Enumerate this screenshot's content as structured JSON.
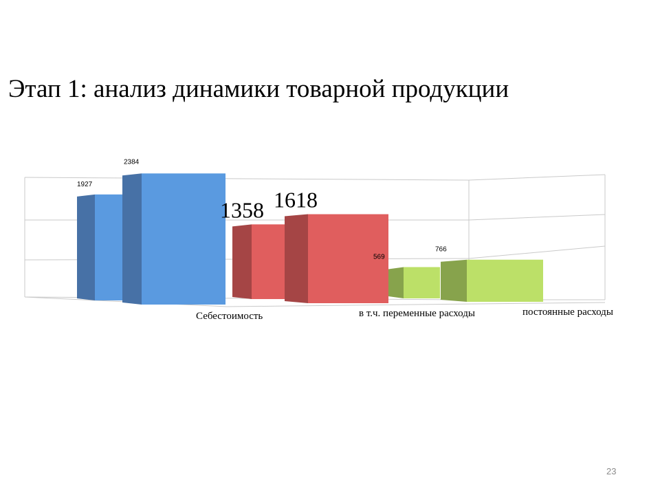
{
  "slide": {
    "title": "Этап 1: анализ динамики товарной продукции",
    "page_number": "23"
  },
  "chart_data": {
    "type": "bar",
    "view": "3d-perspective",
    "categories": [
      "Себестоимость",
      "в т.ч. переменные расходы",
      "постоянные расходы"
    ],
    "values": [
      [
        1927,
        2384
      ],
      [
        1358,
        1618
      ],
      [
        569,
        766
      ]
    ],
    "data_labels": [
      [
        "1927",
        "2384"
      ],
      [
        "1358",
        "1618"
      ],
      [
        "569",
        "766"
      ]
    ],
    "colors": [
      "#5a9ae0",
      "#e05e5e",
      "#bce068"
    ],
    "side_colors": [
      "#4771a6",
      "#a54545",
      "#87a34c"
    ],
    "grid": true,
    "legend": "none"
  }
}
